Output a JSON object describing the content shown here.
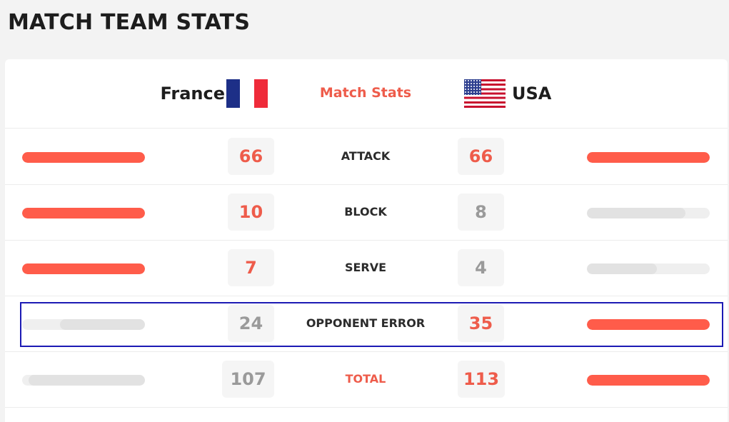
{
  "page": {
    "title": "MATCH TEAM STATS"
  },
  "header": {
    "home_team": "France",
    "away_team": "USA",
    "center_label": "Match Stats"
  },
  "colors": {
    "accent": "#ee5c4b",
    "bar_leader": "#ff5c4a",
    "bar_other": "#e2e2e2",
    "highlight_border": "#1c1ab4"
  },
  "stats": [
    {
      "label": "ATTACK",
      "home": "66",
      "away": "66",
      "home_bar_fraction": 1.0,
      "away_bar_fraction": 1.0
    },
    {
      "label": "BLOCK",
      "home": "10",
      "away": "8",
      "home_bar_fraction": 1.0,
      "away_bar_fraction": 0.8
    },
    {
      "label": "SERVE",
      "home": "7",
      "away": "4",
      "home_bar_fraction": 1.0,
      "away_bar_fraction": 0.57
    },
    {
      "label": "OPPONENT ERROR",
      "home": "24",
      "away": "35",
      "home_bar_fraction": 0.69,
      "away_bar_fraction": 1.0
    },
    {
      "label": "TOTAL",
      "home": "107",
      "away": "113",
      "home_bar_fraction": 0.95,
      "away_bar_fraction": 1.0
    }
  ]
}
